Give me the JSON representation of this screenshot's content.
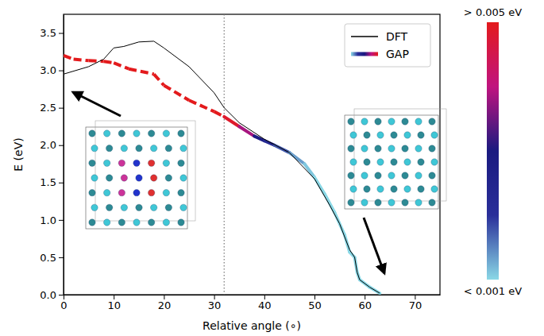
{
  "chart_data": {
    "type": "line",
    "xlabel": "Relative angle (∘)",
    "ylabel": "E (eV)",
    "xlim": [
      0,
      75
    ],
    "xticks": [
      0,
      10,
      20,
      30,
      40,
      50,
      60,
      70
    ],
    "ylim": [
      0,
      3.75
    ],
    "yticks": [
      {
        "value": 0,
        "label": "0.0"
      },
      0.5,
      {
        "value": 1,
        "label": "1.0"
      },
      1.5,
      {
        "value": 2,
        "label": "2.0"
      },
      2.5,
      {
        "value": 3,
        "label": "3.0"
      },
      3.5
    ],
    "grid": false,
    "legend": "upper right",
    "vline": {
      "x": 32,
      "line_style": "dotted"
    },
    "series": [
      {
        "name": "DFT",
        "color": "#000000",
        "line_style": "solid",
        "x": [
          0,
          5,
          8,
          10,
          12,
          15,
          18,
          20,
          25,
          30,
          32,
          35,
          40,
          45,
          50,
          53,
          55,
          57,
          58,
          58.5,
          59,
          61,
          63
        ],
        "values": [
          2.95,
          3.05,
          3.15,
          3.3,
          3.32,
          3.38,
          3.39,
          3.3,
          3.05,
          2.7,
          2.5,
          2.3,
          2.08,
          1.9,
          1.55,
          1.2,
          0.95,
          0.6,
          0.5,
          0.3,
          0.2,
          0.1,
          0.02
        ]
      },
      {
        "name": "GAP",
        "x": [
          0,
          2,
          5,
          8,
          10,
          13,
          18,
          20,
          25,
          30,
          32,
          35,
          38,
          40,
          42,
          45,
          48,
          50,
          52,
          54,
          56,
          57,
          58,
          58.5,
          59,
          61,
          63
        ],
        "values": [
          3.2,
          3.15,
          3.13,
          3.12,
          3.1,
          3.02,
          2.95,
          2.8,
          2.6,
          2.45,
          2.38,
          2.25,
          2.12,
          2.06,
          2.0,
          1.9,
          1.75,
          1.57,
          1.35,
          1.1,
          0.8,
          0.57,
          0.5,
          0.3,
          0.2,
          0.1,
          0.02
        ],
        "errors": [
          0.01,
          0.01,
          0.01,
          0.01,
          0.01,
          0.01,
          0.01,
          0.01,
          0.01,
          0.01,
          0.0052,
          0.0045,
          0.0032,
          0.0026,
          0.002,
          0.0015,
          0.0012,
          0.001,
          0.001,
          0.0009,
          0.0009,
          0.0009,
          0.0009,
          0.0009,
          0.0009,
          0.0009,
          0.0009
        ]
      }
    ],
    "colorbar": {
      "range": [
        0.001,
        0.005
      ],
      "ticks": [
        {
          "value": 0.005,
          "label": "> 0.005 eV"
        },
        {
          "value": 0.001,
          "label": "< 0.001 eV"
        }
      ],
      "colors": [
        "#8ad8e6",
        "#2a2f9a",
        "#1a1a80",
        "#c0147f",
        "#e31a1c"
      ]
    }
  }
}
